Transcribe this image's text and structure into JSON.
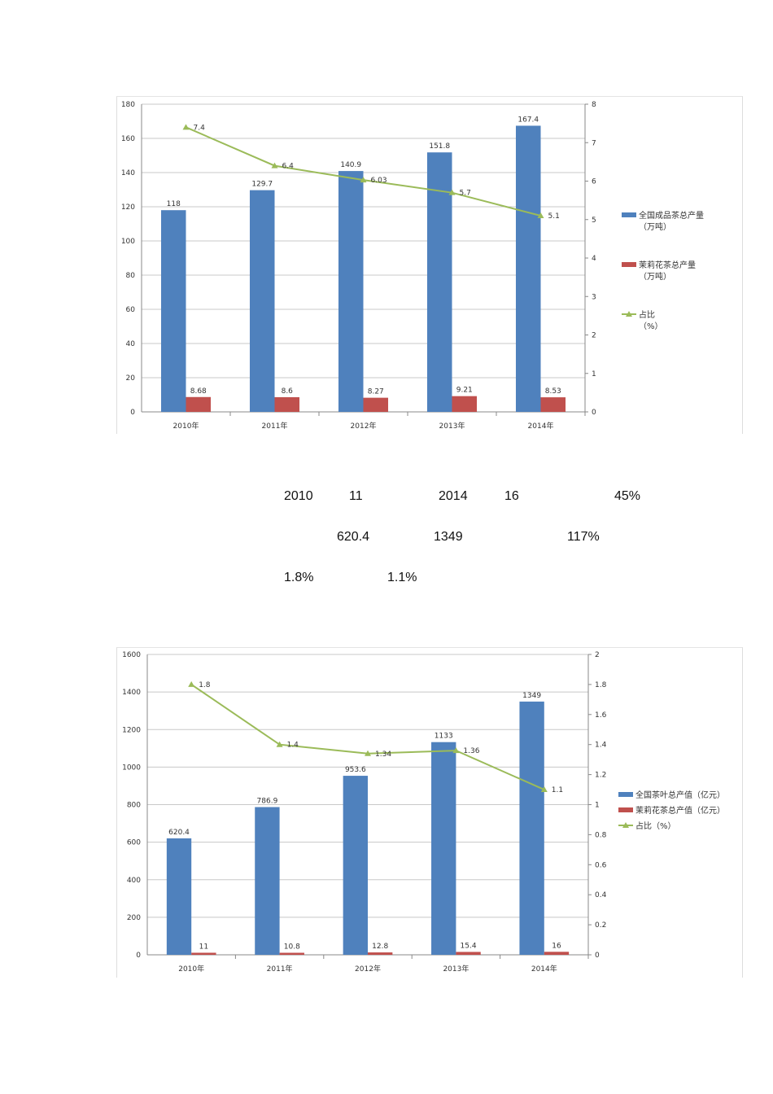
{
  "text_fragments": [
    [
      "2010",
      "11",
      "2014",
      "16",
      "45%"
    ],
    [
      "620.4",
      "1349",
      "117%"
    ],
    [
      "1.8%",
      "1.1%"
    ]
  ],
  "chart_data": [
    {
      "type": "bar+line",
      "categories": [
        "2010年",
        "2011年",
        "2012年",
        "2013年",
        "2014年"
      ],
      "ylim_left": [
        0,
        180
      ],
      "yticks_left": [
        0,
        20,
        40,
        60,
        80,
        100,
        120,
        140,
        160,
        180
      ],
      "ylim_right": [
        0,
        8
      ],
      "yticks_right": [
        0,
        1,
        2,
        3,
        4,
        5,
        6,
        7,
        8
      ],
      "grid": true,
      "legend_position": "right",
      "series": [
        {
          "name": "全国成品茶总产量（万吨）",
          "kind": "bar",
          "axis": "left",
          "color": "#4f81bd",
          "values": [
            118,
            129.7,
            140.9,
            151.8,
            167.4
          ],
          "labels": [
            "118",
            "129.7",
            "140.9",
            "151.8",
            "167.4"
          ]
        },
        {
          "name": "茉莉花茶总产量（万吨）",
          "kind": "bar",
          "axis": "left",
          "color": "#c0504d",
          "values": [
            8.68,
            8.6,
            8.27,
            9.21,
            8.53
          ],
          "labels": [
            "8.68",
            "8.6",
            "8.27",
            "9.21",
            "8.53"
          ]
        },
        {
          "name": "占比（%）",
          "kind": "line",
          "axis": "right",
          "color": "#9bbb59",
          "values": [
            7.4,
            6.4,
            6.03,
            5.7,
            5.1
          ],
          "labels": [
            "7.4",
            "6.4",
            "6.03",
            "5.7",
            "5.1"
          ]
        }
      ]
    },
    {
      "type": "bar+line",
      "categories": [
        "2010年",
        "2011年",
        "2012年",
        "2013年",
        "2014年"
      ],
      "ylim_left": [
        0,
        1600
      ],
      "yticks_left": [
        0,
        200,
        400,
        600,
        800,
        1000,
        1200,
        1400,
        1600
      ],
      "ylim_right": [
        0,
        2
      ],
      "yticks_right": [
        "0",
        "0.2",
        "0.4",
        "0.6",
        "0.8",
        "1",
        "1.2",
        "1.4",
        "1.6",
        "1.8",
        "2"
      ],
      "grid": true,
      "legend_position": "right",
      "series": [
        {
          "name": "全国茶叶总产值（亿元）",
          "kind": "bar",
          "axis": "left",
          "color": "#4f81bd",
          "values": [
            620.4,
            786.9,
            953.6,
            1133,
            1349
          ],
          "labels": [
            "620.4",
            "786.9",
            "953.6",
            "1133",
            "1349"
          ]
        },
        {
          "name": "茉莉花茶总产值（亿元）",
          "kind": "bar",
          "axis": "left",
          "color": "#c0504d",
          "values": [
            11,
            10.8,
            12.8,
            15.4,
            16
          ],
          "labels": [
            "11",
            "10.8",
            "12.8",
            "15.4",
            "16"
          ]
        },
        {
          "name": "占比（%）",
          "kind": "line",
          "axis": "right",
          "color": "#9bbb59",
          "values": [
            1.8,
            1.4,
            1.34,
            1.36,
            1.1
          ],
          "labels": [
            "1.8",
            "1.4",
            "1.34",
            "1.36",
            "1.1"
          ]
        }
      ]
    }
  ]
}
